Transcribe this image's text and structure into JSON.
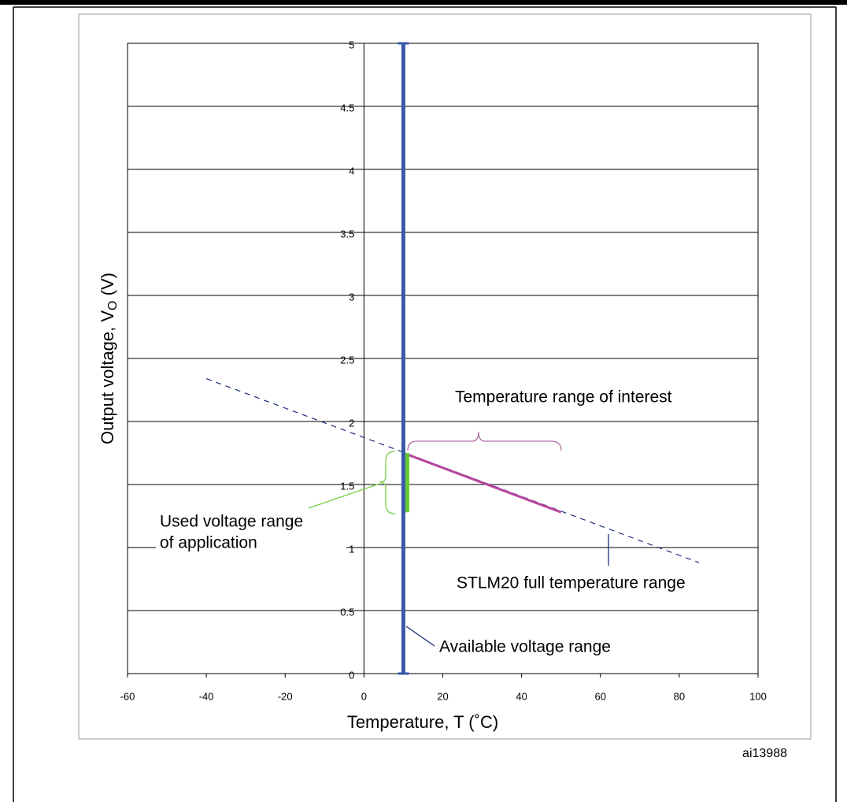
{
  "chart_data": {
    "type": "line",
    "xlabel": "Temperature, T (˚C)",
    "ylabel": [
      "Output voltage, V",
      "O",
      " (V)"
    ],
    "xlim": [
      -60,
      100
    ],
    "xticks": [
      -60,
      -40,
      -20,
      0,
      20,
      40,
      60,
      80,
      100
    ],
    "ylim": [
      0,
      5
    ],
    "yticks": [
      0,
      0.5,
      1,
      1.5,
      2,
      2.5,
      3,
      3.5,
      4,
      4.5,
      5
    ],
    "grid": true,
    "series": [
      {
        "color": "#1c2d7a",
        "dashed": true,
        "width": 1.2,
        "x": [
          -40,
          85
        ],
        "values": [
          2.34,
          0.88
        ]
      },
      {
        "color": "#b845a0",
        "dashed": false,
        "width": 3,
        "x": [
          10,
          50
        ],
        "values": [
          1.75,
          1.28
        ]
      },
      {
        "color": "#66cc33",
        "dashed": false,
        "width": 5,
        "x": [
          11,
          11
        ],
        "values": [
          1.28,
          1.75
        ]
      },
      {
        "color": "#3a5aa8",
        "dashed": false,
        "width": 5,
        "capped": true,
        "x": [
          10,
          10
        ],
        "values": [
          0,
          5
        ]
      }
    ],
    "annotations": {
      "interest": "Temperature range of interest",
      "used": [
        "Used voltage range",
        "of application"
      ],
      "full": "STLM20 full temperature range",
      "available": "Available voltage range"
    },
    "figure_id": "ai13988"
  }
}
